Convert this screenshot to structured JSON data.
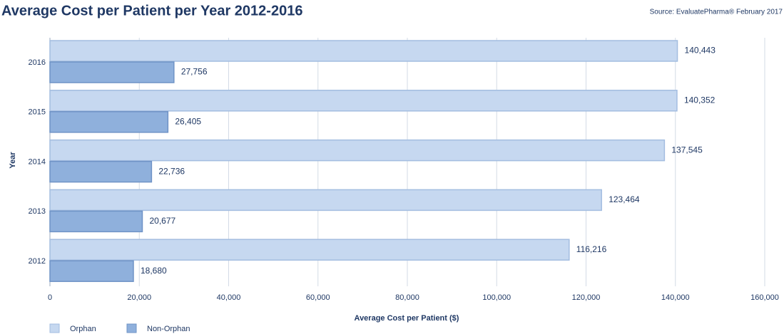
{
  "chart_data": {
    "type": "bar",
    "orientation": "horizontal",
    "title": "Average Cost per Patient per Year 2012-2016",
    "source": "Source: EvaluatePharma® February 2017",
    "x_label": "Average Cost per Patient ($)",
    "y_label": "Year",
    "categories": [
      "2012",
      "2013",
      "2014",
      "2015",
      "2016"
    ],
    "series": [
      {
        "name": "Orphan",
        "color": "#c6d8f0",
        "values": [
          116216,
          123464,
          137545,
          140352,
          140443
        ],
        "value_labels": [
          "116,216",
          "123,464",
          "137,545",
          "140,352",
          "140,443"
        ]
      },
      {
        "name": "Non-Orphan",
        "color": "#8fb0dc",
        "values": [
          18680,
          20677,
          22736,
          26405,
          27756
        ],
        "value_labels": [
          "18,680",
          "20,677",
          "22,736",
          "26,405",
          "27,756"
        ]
      }
    ],
    "xlim": [
      0,
      160000
    ],
    "xticks": [
      0,
      {
        "value": 20000,
        "label": "20,000"
      },
      {
        "value": 40000,
        "label": "40,000"
      },
      {
        "value": 60000,
        "label": "60,000"
      },
      {
        "value": 80000,
        "label": "80,000"
      },
      {
        "value": 100000,
        "label": "100,000"
      },
      {
        "value": 120000,
        "label": "120,000"
      },
      {
        "value": 140000,
        "label": "140,000"
      },
      {
        "value": 160000,
        "label": "160,000"
      }
    ],
    "grid": true
  }
}
